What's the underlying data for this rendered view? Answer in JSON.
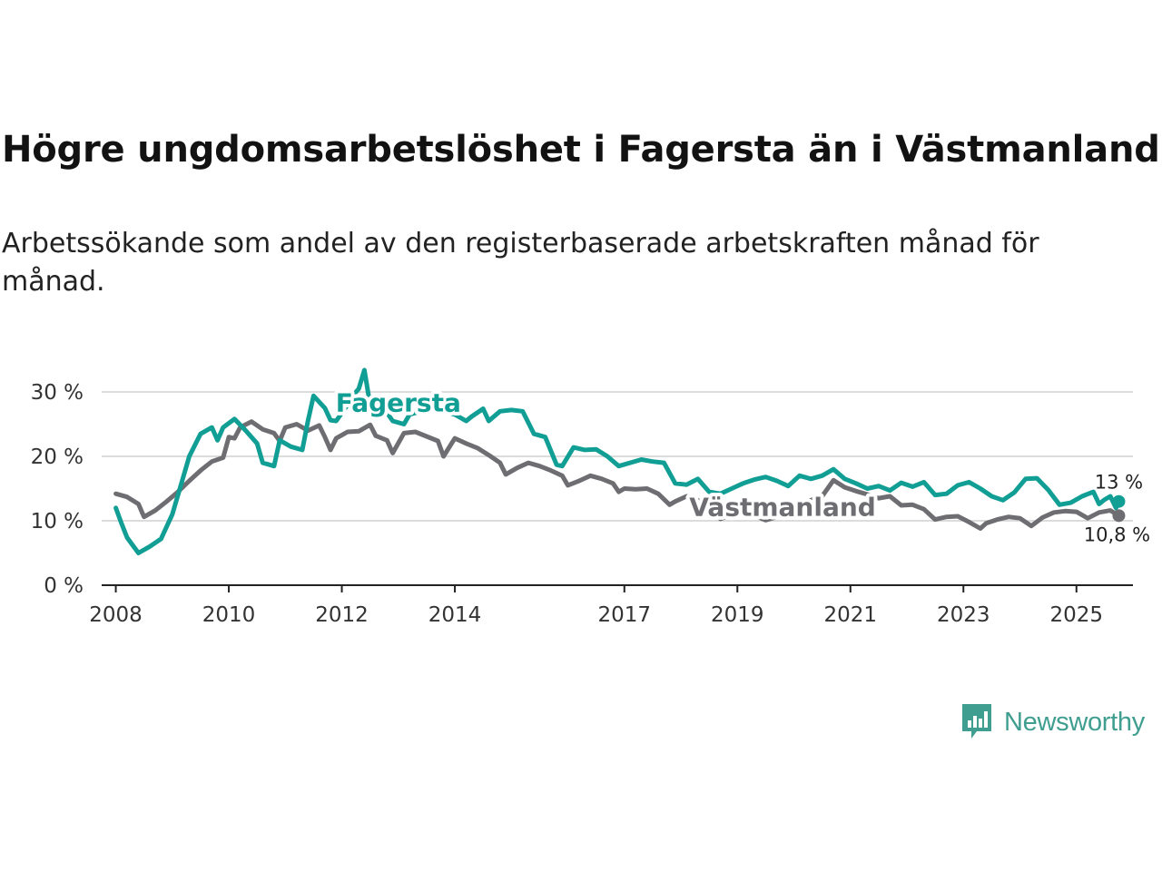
{
  "title": "Högre ungdomsarbetslöshet i Fagersta än i Västmanland",
  "subtitle": "Arbetssökande som andel av den registerbaserade arbetskraften månad för månad.",
  "brand": {
    "name": "Newsworthy",
    "icon": "newsworthy-logo-icon",
    "color": "#3f9e90"
  },
  "chart_data": {
    "type": "line",
    "title": "Högre ungdomsarbetslöshet i Fagersta än i Västmanland",
    "xlabel": "",
    "ylabel": "",
    "xlim": [
      2007.75,
      2026.0
    ],
    "ylim": [
      0,
      30
    ],
    "grid": true,
    "x_ticks": [
      {
        "value": 2008,
        "label": "2008"
      },
      {
        "value": 2010,
        "label": "2010"
      },
      {
        "value": 2012,
        "label": "2012"
      },
      {
        "value": 2014,
        "label": "2014"
      },
      {
        "value": 2017,
        "label": "2017"
      },
      {
        "value": 2019,
        "label": "2019"
      },
      {
        "value": 2021,
        "label": "2021"
      },
      {
        "value": 2023,
        "label": "2023"
      },
      {
        "value": 2025,
        "label": "2025"
      }
    ],
    "y_ticks": [
      {
        "value": 0,
        "label": "0 %"
      },
      {
        "value": 10,
        "label": "10 %"
      },
      {
        "value": 20,
        "label": "20 %"
      },
      {
        "value": 30,
        "label": "30 %"
      }
    ],
    "series": [
      {
        "name": "Västmanland",
        "color": "#6e6e72",
        "label_pos": [
          2019.8,
          10.8
        ],
        "end_label": "10,8 %",
        "points": [
          [
            2008.0,
            14.2
          ],
          [
            2008.2,
            13.7
          ],
          [
            2008.4,
            12.6
          ],
          [
            2008.5,
            10.6
          ],
          [
            2008.7,
            11.6
          ],
          [
            2008.9,
            13.0
          ],
          [
            2009.1,
            14.5
          ],
          [
            2009.3,
            16.2
          ],
          [
            2009.5,
            17.8
          ],
          [
            2009.7,
            19.2
          ],
          [
            2009.9,
            19.8
          ],
          [
            2010.0,
            23.0
          ],
          [
            2010.1,
            22.8
          ],
          [
            2010.2,
            24.5
          ],
          [
            2010.4,
            25.4
          ],
          [
            2010.6,
            24.2
          ],
          [
            2010.8,
            23.6
          ],
          [
            2010.9,
            22.4
          ],
          [
            2011.0,
            24.5
          ],
          [
            2011.2,
            25.0
          ],
          [
            2011.4,
            24.0
          ],
          [
            2011.6,
            24.8
          ],
          [
            2011.7,
            23.0
          ],
          [
            2011.8,
            21.0
          ],
          [
            2011.9,
            22.8
          ],
          [
            2012.1,
            23.8
          ],
          [
            2012.3,
            23.9
          ],
          [
            2012.5,
            24.9
          ],
          [
            2012.6,
            23.2
          ],
          [
            2012.8,
            22.5
          ],
          [
            2012.9,
            20.5
          ],
          [
            2013.1,
            23.6
          ],
          [
            2013.3,
            23.8
          ],
          [
            2013.5,
            23.1
          ],
          [
            2013.7,
            22.4
          ],
          [
            2013.8,
            20.0
          ],
          [
            2014.0,
            22.8
          ],
          [
            2014.2,
            22.0
          ],
          [
            2014.4,
            21.3
          ],
          [
            2014.6,
            20.2
          ],
          [
            2014.8,
            19.0
          ],
          [
            2014.9,
            17.2
          ],
          [
            2015.1,
            18.2
          ],
          [
            2015.3,
            19.0
          ],
          [
            2015.5,
            18.5
          ],
          [
            2015.7,
            17.8
          ],
          [
            2015.9,
            17.0
          ],
          [
            2016.0,
            15.5
          ],
          [
            2016.2,
            16.2
          ],
          [
            2016.4,
            17.0
          ],
          [
            2016.6,
            16.5
          ],
          [
            2016.8,
            15.8
          ],
          [
            2016.9,
            14.5
          ],
          [
            2017.0,
            15.0
          ],
          [
            2017.2,
            14.9
          ],
          [
            2017.4,
            15.0
          ],
          [
            2017.6,
            14.2
          ],
          [
            2017.8,
            12.5
          ],
          [
            2017.9,
            13.0
          ],
          [
            2018.1,
            13.8
          ],
          [
            2018.3,
            13.2
          ],
          [
            2018.5,
            12.0
          ],
          [
            2018.7,
            10.3
          ],
          [
            2018.9,
            11.0
          ],
          [
            2019.1,
            11.2
          ],
          [
            2019.3,
            10.8
          ],
          [
            2019.5,
            10.1
          ],
          [
            2019.7,
            10.6
          ],
          [
            2019.9,
            11.6
          ],
          [
            2020.1,
            12.4
          ],
          [
            2020.3,
            13.2
          ],
          [
            2020.5,
            13.8
          ],
          [
            2020.7,
            16.3
          ],
          [
            2020.9,
            15.2
          ],
          [
            2021.1,
            14.6
          ],
          [
            2021.3,
            14.1
          ],
          [
            2021.5,
            13.5
          ],
          [
            2021.7,
            13.8
          ],
          [
            2021.9,
            12.4
          ],
          [
            2022.1,
            12.5
          ],
          [
            2022.3,
            11.8
          ],
          [
            2022.5,
            10.2
          ],
          [
            2022.7,
            10.6
          ],
          [
            2022.9,
            10.7
          ],
          [
            2023.1,
            9.8
          ],
          [
            2023.3,
            8.8
          ],
          [
            2023.4,
            9.6
          ],
          [
            2023.6,
            10.2
          ],
          [
            2023.8,
            10.6
          ],
          [
            2024.0,
            10.4
          ],
          [
            2024.2,
            9.2
          ],
          [
            2024.4,
            10.5
          ],
          [
            2024.6,
            11.3
          ],
          [
            2024.8,
            11.5
          ],
          [
            2025.0,
            11.4
          ],
          [
            2025.2,
            10.4
          ],
          [
            2025.4,
            11.3
          ],
          [
            2025.6,
            11.6
          ],
          [
            2025.75,
            10.8
          ]
        ]
      },
      {
        "name": "Fagersta",
        "color": "#119e94",
        "label_pos": [
          2013.0,
          27.0
        ],
        "end_label": "13 %",
        "points": [
          [
            2008.0,
            12.0
          ],
          [
            2008.1,
            9.6
          ],
          [
            2008.2,
            7.4
          ],
          [
            2008.3,
            6.2
          ],
          [
            2008.4,
            5.0
          ],
          [
            2008.6,
            6.0
          ],
          [
            2008.8,
            7.2
          ],
          [
            2009.0,
            11.0
          ],
          [
            2009.2,
            17.0
          ],
          [
            2009.3,
            20.0
          ],
          [
            2009.5,
            23.5
          ],
          [
            2009.7,
            24.5
          ],
          [
            2009.8,
            22.5
          ],
          [
            2009.9,
            24.5
          ],
          [
            2010.1,
            25.8
          ],
          [
            2010.3,
            24.0
          ],
          [
            2010.5,
            22.0
          ],
          [
            2010.6,
            19.0
          ],
          [
            2010.8,
            18.5
          ],
          [
            2010.9,
            22.5
          ],
          [
            2011.1,
            21.5
          ],
          [
            2011.3,
            21.0
          ],
          [
            2011.4,
            25.5
          ],
          [
            2011.5,
            29.4
          ],
          [
            2011.7,
            27.5
          ],
          [
            2011.8,
            25.6
          ],
          [
            2011.9,
            25.5
          ],
          [
            2012.1,
            28.0
          ],
          [
            2012.2,
            29.5
          ],
          [
            2012.3,
            30.5
          ],
          [
            2012.4,
            33.4
          ],
          [
            2012.5,
            28.0
          ],
          [
            2012.7,
            28.0
          ],
          [
            2012.9,
            25.5
          ],
          [
            2013.1,
            25.0
          ],
          [
            2013.2,
            26.5
          ],
          [
            2013.4,
            27.0
          ],
          [
            2013.6,
            27.5
          ],
          [
            2014.0,
            26.5
          ],
          [
            2014.2,
            25.5
          ],
          [
            2014.3,
            26.2
          ],
          [
            2014.5,
            27.4
          ],
          [
            2014.6,
            25.5
          ],
          [
            2014.8,
            27.0
          ],
          [
            2015.0,
            27.2
          ],
          [
            2015.2,
            27.0
          ],
          [
            2015.4,
            23.5
          ],
          [
            2015.6,
            23.0
          ],
          [
            2015.8,
            18.7
          ],
          [
            2015.9,
            18.5
          ],
          [
            2016.1,
            21.4
          ],
          [
            2016.3,
            21.0
          ],
          [
            2016.5,
            21.1
          ],
          [
            2016.7,
            20.0
          ],
          [
            2016.9,
            18.5
          ],
          [
            2017.1,
            19.0
          ],
          [
            2017.3,
            19.5
          ],
          [
            2017.5,
            19.2
          ],
          [
            2017.7,
            19.0
          ],
          [
            2017.9,
            15.8
          ],
          [
            2018.1,
            15.6
          ],
          [
            2018.3,
            16.5
          ],
          [
            2018.5,
            14.5
          ],
          [
            2018.7,
            14.2
          ],
          [
            2018.9,
            15.0
          ],
          [
            2019.1,
            15.8
          ],
          [
            2019.3,
            16.4
          ],
          [
            2019.5,
            16.8
          ],
          [
            2019.7,
            16.2
          ],
          [
            2019.9,
            15.4
          ],
          [
            2020.1,
            17.0
          ],
          [
            2020.3,
            16.5
          ],
          [
            2020.5,
            17.0
          ],
          [
            2020.7,
            18.0
          ],
          [
            2020.9,
            16.5
          ],
          [
            2021.1,
            15.8
          ],
          [
            2021.3,
            15.0
          ],
          [
            2021.5,
            15.4
          ],
          [
            2021.7,
            14.7
          ],
          [
            2021.9,
            15.9
          ],
          [
            2022.1,
            15.3
          ],
          [
            2022.3,
            16.0
          ],
          [
            2022.5,
            14.0
          ],
          [
            2022.7,
            14.2
          ],
          [
            2022.9,
            15.5
          ],
          [
            2023.1,
            16.0
          ],
          [
            2023.3,
            15.0
          ],
          [
            2023.5,
            13.8
          ],
          [
            2023.7,
            13.2
          ],
          [
            2023.9,
            14.4
          ],
          [
            2024.1,
            16.5
          ],
          [
            2024.3,
            16.6
          ],
          [
            2024.5,
            14.8
          ],
          [
            2024.7,
            12.5
          ],
          [
            2024.9,
            12.8
          ],
          [
            2025.1,
            13.8
          ],
          [
            2025.3,
            14.5
          ],
          [
            2025.4,
            12.6
          ],
          [
            2025.5,
            13.3
          ],
          [
            2025.6,
            13.8
          ],
          [
            2025.7,
            12.0
          ],
          [
            2025.75,
            13.0
          ]
        ]
      }
    ]
  }
}
